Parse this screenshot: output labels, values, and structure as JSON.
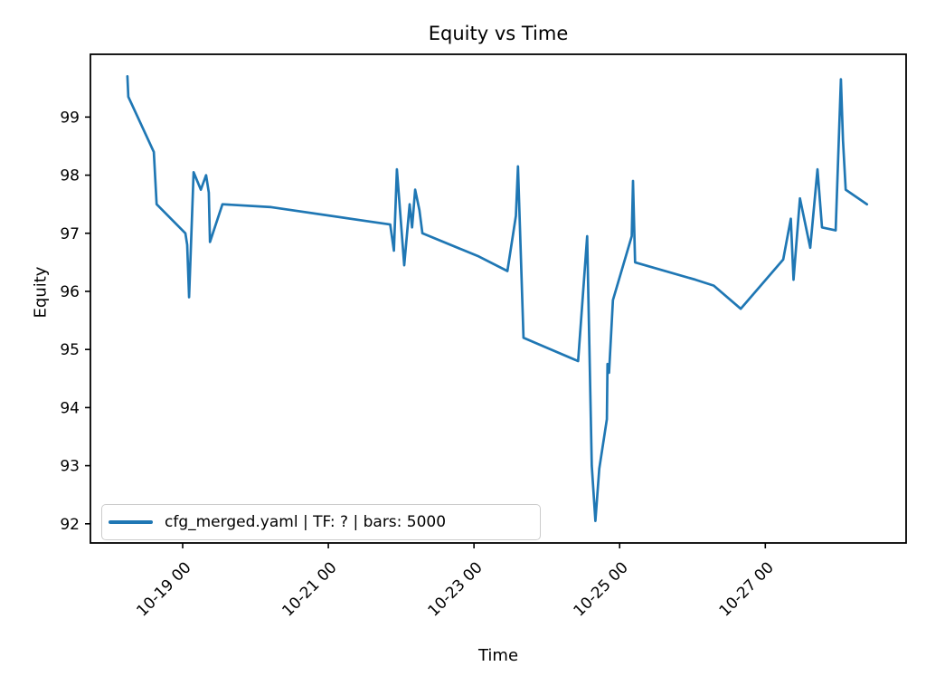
{
  "figure": {
    "background": "#ffffff"
  },
  "chart_data": {
    "type": "line",
    "title": "Equity vs Time",
    "xlabel": "Time",
    "ylabel": "Equity",
    "grid": false,
    "x_encoding": "hours, 0 = 10-18 00",
    "xlim": [
      -6.4,
      262.4
    ],
    "ylim": [
      91.67,
      100.08
    ],
    "x_ticks": [
      {
        "t": 24,
        "label": "10-19 00"
      },
      {
        "t": 72,
        "label": "10-21 00"
      },
      {
        "t": 120,
        "label": "10-23 00"
      },
      {
        "t": 168,
        "label": "10-25 00"
      },
      {
        "t": 216,
        "label": "10-27 00"
      }
    ],
    "y_ticks": [
      {
        "v": 92,
        "label": "92"
      },
      {
        "v": 93,
        "label": "93"
      },
      {
        "v": 94,
        "label": "94"
      },
      {
        "v": 95,
        "label": "95"
      },
      {
        "v": 96,
        "label": "96"
      },
      {
        "v": 97,
        "label": "97"
      },
      {
        "v": 98,
        "label": "98"
      },
      {
        "v": 99,
        "label": "99"
      }
    ],
    "legend": {
      "loc": "lower left",
      "entries": [
        {
          "label": "cfg_merged.yaml | TF: ? | bars: 5000",
          "color": "#1f77b4"
        }
      ]
    },
    "series": [
      {
        "name": "cfg_merged.yaml | TF: ? | bars: 5000",
        "color": "#1f77b4",
        "points": [
          [
            5.8,
            99.7
          ],
          [
            6.1,
            99.35
          ],
          [
            14.5,
            98.4
          ],
          [
            15.4,
            97.5
          ],
          [
            24.9,
            97.0
          ],
          [
            25.5,
            96.8
          ],
          [
            26.1,
            95.9
          ],
          [
            27.6,
            98.05
          ],
          [
            30.0,
            97.75
          ],
          [
            31.7,
            98.0
          ],
          [
            32.6,
            97.7
          ],
          [
            33.0,
            96.85
          ],
          [
            37.1,
            97.5
          ],
          [
            53.2,
            97.45
          ],
          [
            85.9,
            97.2
          ],
          [
            92.4,
            97.15
          ],
          [
            93.6,
            96.7
          ],
          [
            94.6,
            98.1
          ],
          [
            97.0,
            96.45
          ],
          [
            98.8,
            97.5
          ],
          [
            99.6,
            97.1
          ],
          [
            100.6,
            97.75
          ],
          [
            102.0,
            97.4
          ],
          [
            103.0,
            97.0
          ],
          [
            121.6,
            96.6
          ],
          [
            131.0,
            96.35
          ],
          [
            133.8,
            97.3
          ],
          [
            134.5,
            98.15
          ],
          [
            136.3,
            95.2
          ],
          [
            154.3,
            94.8
          ],
          [
            157.3,
            96.95
          ],
          [
            158.8,
            93.0
          ],
          [
            160.0,
            92.05
          ],
          [
            161.3,
            92.95
          ],
          [
            163.8,
            93.8
          ],
          [
            164.0,
            94.75
          ],
          [
            164.5,
            94.6
          ],
          [
            165.8,
            95.85
          ],
          [
            172.0,
            96.95
          ],
          [
            172.4,
            97.9
          ],
          [
            173.1,
            96.5
          ],
          [
            193.0,
            96.2
          ],
          [
            199.0,
            96.1
          ],
          [
            207.9,
            95.7
          ],
          [
            221.9,
            96.55
          ],
          [
            224.4,
            97.25
          ],
          [
            225.3,
            96.2
          ],
          [
            227.4,
            97.6
          ],
          [
            230.8,
            96.75
          ],
          [
            233.2,
            98.1
          ],
          [
            234.7,
            97.1
          ],
          [
            239.2,
            97.05
          ],
          [
            240.9,
            99.65
          ],
          [
            241.6,
            98.6
          ],
          [
            242.5,
            97.75
          ],
          [
            249.5,
            97.5
          ]
        ]
      }
    ]
  }
}
